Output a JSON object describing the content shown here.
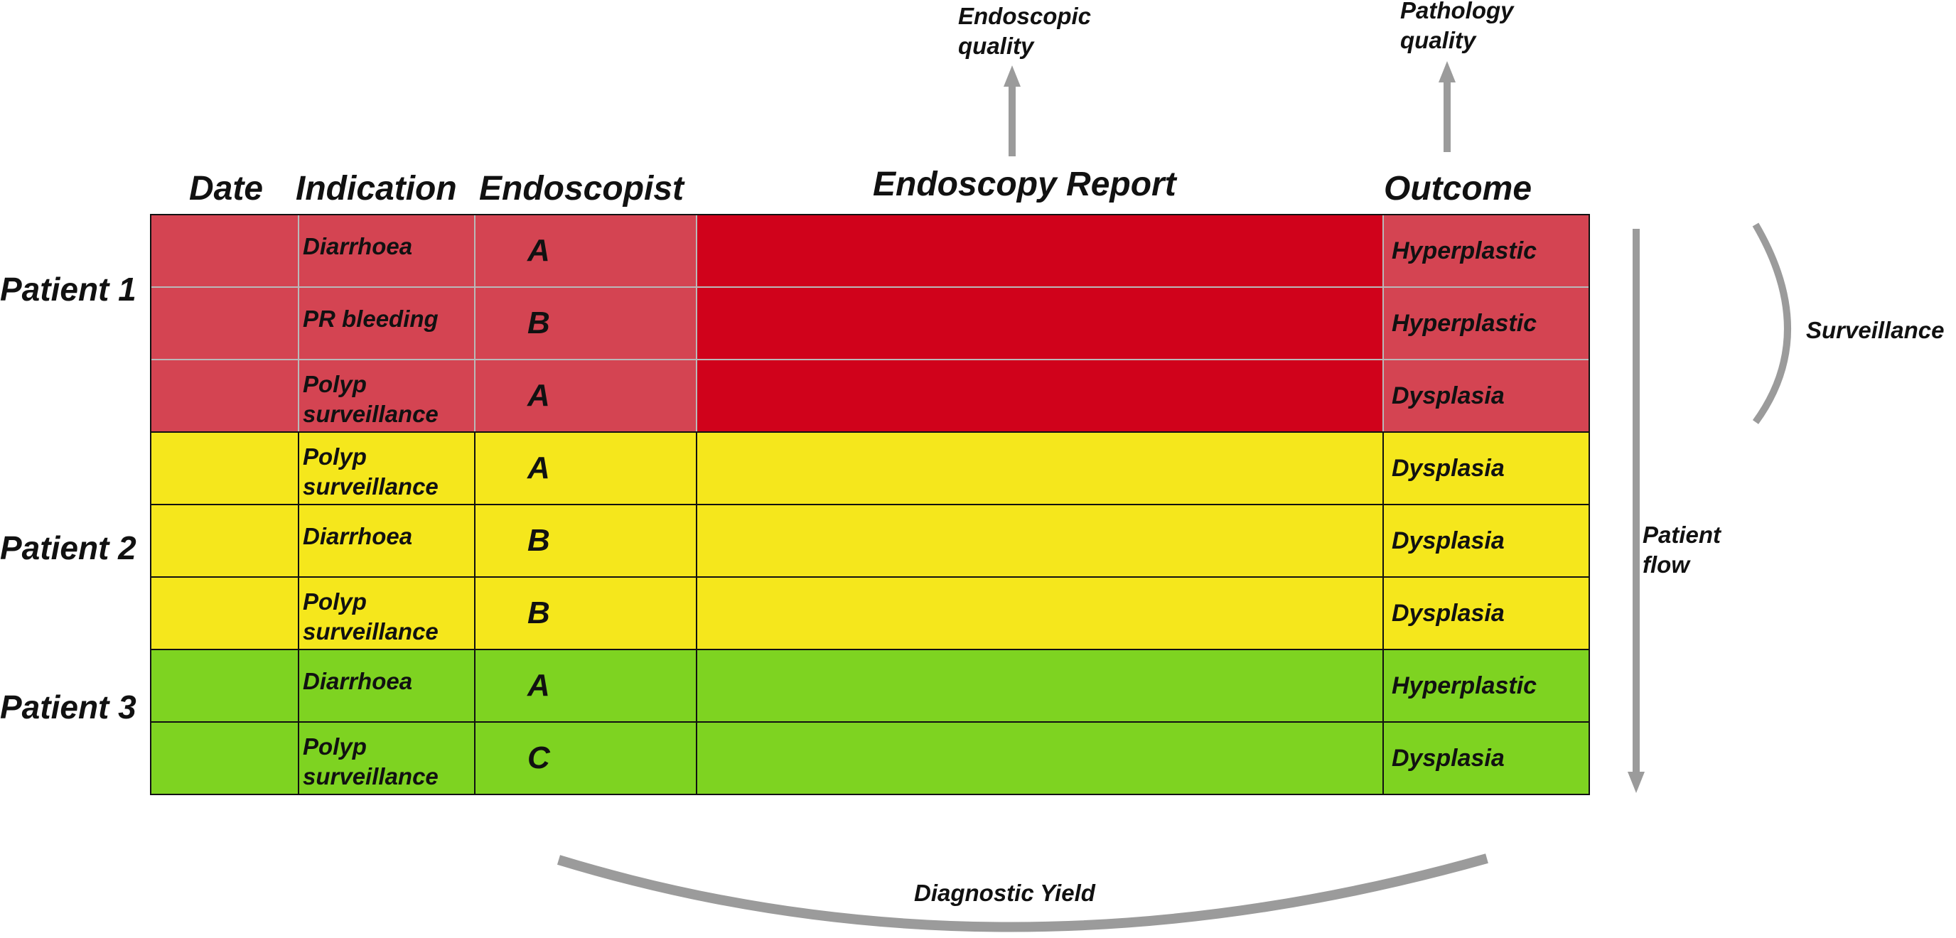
{
  "headers": {
    "date": "Date",
    "indication": "Indication",
    "endoscopist": "Endoscopist",
    "report": "Endoscopy Report",
    "outcome": "Outcome"
  },
  "patients": [
    {
      "label": "Patient 1",
      "color": "#d44452",
      "report_color": "#d0021b",
      "rows": [
        {
          "indication": [
            "Diarrhoea"
          ],
          "endoscopist": "A",
          "outcome": "Hyperplastic"
        },
        {
          "indication": [
            "PR bleeding"
          ],
          "endoscopist": "B",
          "outcome": "Hyperplastic"
        },
        {
          "indication": [
            "Polyp",
            "surveillance"
          ],
          "endoscopist": "A",
          "outcome": "Dysplasia"
        }
      ]
    },
    {
      "label": "Patient 2",
      "color": "#f5e71c",
      "report_color": "#f5e71c",
      "rows": [
        {
          "indication": [
            "Polyp",
            "surveillance"
          ],
          "endoscopist": "A",
          "outcome": "Dysplasia"
        },
        {
          "indication": [
            "Diarrhoea"
          ],
          "endoscopist": "B",
          "outcome": "Dysplasia"
        },
        {
          "indication": [
            "Polyp",
            "surveillance"
          ],
          "endoscopist": "B",
          "outcome": "Dysplasia"
        }
      ]
    },
    {
      "label": "Patient 3",
      "color": "#7ed321",
      "report_color": "#7ed321",
      "rows": [
        {
          "indication": [
            "Diarrhoea"
          ],
          "endoscopist": "A",
          "outcome": "Hyperplastic"
        },
        {
          "indication": [
            "Polyp",
            "surveillance"
          ],
          "endoscopist": "C",
          "outcome": "Dysplasia"
        }
      ]
    }
  ],
  "annotations": {
    "endoscopic_quality": [
      "Endoscopic",
      "quality"
    ],
    "pathology_quality": [
      "Pathology",
      "quality"
    ],
    "surveillance": "Surveillance",
    "patient_flow": [
      "Patient",
      "flow"
    ],
    "diagnostic_yield": "Diagnostic Yield"
  },
  "colors": {
    "arrow": "#9b9b9b",
    "text": "#111111"
  }
}
